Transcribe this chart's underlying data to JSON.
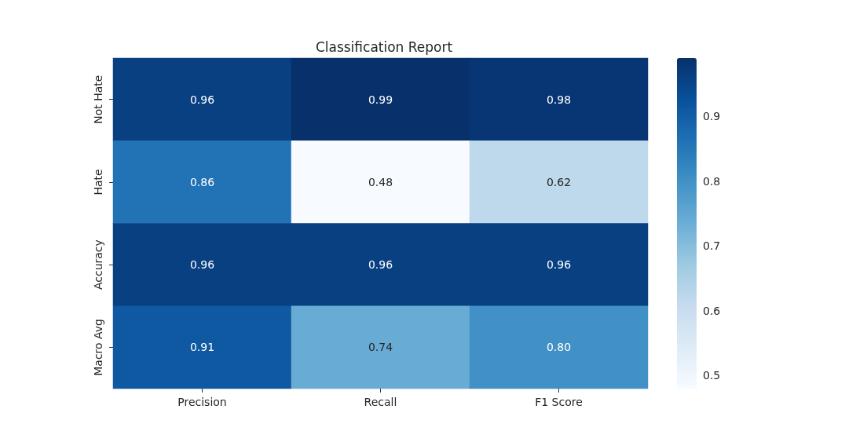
{
  "chart_data": {
    "type": "heatmap",
    "title": "Classification Report",
    "categories": [
      "Precision",
      "Recall",
      "F1 Score"
    ],
    "y_categories": [
      "Not Hate",
      "Hate",
      "Accuracy",
      "Macro Avg"
    ],
    "cells": [
      [
        0.96,
        0.99,
        0.98
      ],
      [
        0.86,
        0.48,
        0.62
      ],
      [
        0.96,
        0.96,
        0.96
      ],
      [
        0.91,
        0.74,
        0.8
      ]
    ],
    "cell_labels": [
      [
        "0.96",
        "0.99",
        "0.98"
      ],
      [
        "0.86",
        "0.48",
        "0.62"
      ],
      [
        "0.96",
        "0.96",
        "0.96"
      ],
      [
        "0.91",
        "0.74",
        "0.80"
      ]
    ],
    "clim": [
      0.48,
      0.99
    ],
    "cticks": [
      0.5,
      0.6,
      0.7,
      0.8,
      0.9
    ]
  }
}
